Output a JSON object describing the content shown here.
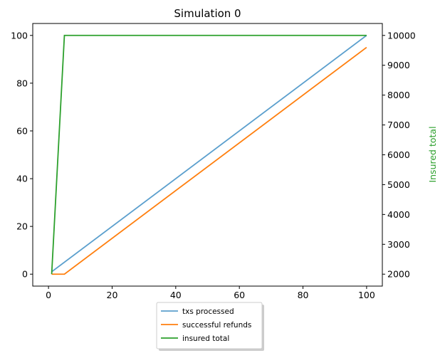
{
  "chart_data": {
    "type": "line",
    "title": "Simulation 0",
    "xlabel": "",
    "ylabel": "",
    "ylabel_right": "Insured total",
    "xlim": [
      -4.95,
      104.95
    ],
    "ylim": [
      -5,
      105
    ],
    "ylim_right": [
      1600,
      10400
    ],
    "x_ticks": [
      0,
      20,
      40,
      60,
      80,
      100
    ],
    "y_ticks": [
      0,
      20,
      40,
      60,
      80,
      100
    ],
    "y_right_ticks": [
      2000,
      3000,
      4000,
      5000,
      6000,
      7000,
      8000,
      9000,
      10000
    ],
    "grid": false,
    "legend_position": "below",
    "series": [
      {
        "name": "txs processed",
        "axis": "left",
        "color": "#5b9fcd",
        "x": [
          1,
          100
        ],
        "y": [
          1,
          100
        ]
      },
      {
        "name": "successful refunds",
        "axis": "left",
        "color": "#ff7f0e",
        "x": [
          1,
          5,
          100
        ],
        "y": [
          0,
          0,
          95
        ]
      },
      {
        "name": "insured total",
        "axis": "right",
        "color": "#2ca02c",
        "x": [
          1,
          5,
          100
        ],
        "y": [
          2000,
          10000,
          10000
        ]
      }
    ]
  }
}
